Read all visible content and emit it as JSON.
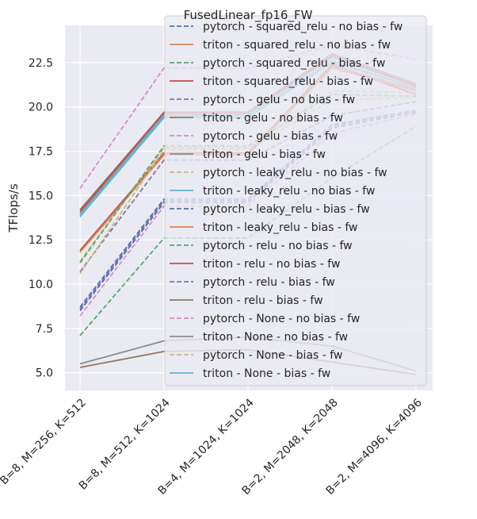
{
  "chart_data": {
    "type": "line",
    "title": "FusedLinear_fp16_FW",
    "xlabel": "",
    "ylabel": "TFlops/s",
    "categories": [
      "B=8, M=256, K=512",
      "B=8, M=512, K=1024",
      "B=4, M=1024, K=1024",
      "B=2, M=2048, K=2048",
      "B=2, M=4096, K=4096"
    ],
    "ylim": [
      4.0,
      24.6
    ],
    "yticks": [
      "5.0",
      "7.5",
      "10.0",
      "12.5",
      "15.0",
      "17.5",
      "20.0",
      "22.5"
    ],
    "grid": true,
    "legend_position": "top-right",
    "series": [
      {
        "name": "pytorch - squared_relu - no bias - fw",
        "color": "#4c72b0",
        "dash": true,
        "values": [
          8.7,
          14.8,
          14.8,
          19.0,
          19.8
        ]
      },
      {
        "name": "triton  - squared_relu - no bias - fw",
        "color": "#dd8452",
        "dash": false,
        "values": [
          11.8,
          17.3,
          17.3,
          22.3,
          21.0
        ]
      },
      {
        "name": "pytorch - squared_relu -  bias - fw",
        "color": "#55a868",
        "dash": true,
        "values": [
          7.1,
          12.6,
          12.6,
          16.0,
          18.9
        ]
      },
      {
        "name": "triton  - squared_relu -  bias - fw",
        "color": "#c44e52",
        "dash": false,
        "values": [
          11.9,
          17.4,
          17.4,
          22.4,
          20.7
        ]
      },
      {
        "name": "pytorch - gelu - no bias - fw",
        "color": "#8172b3",
        "dash": true,
        "values": [
          10.7,
          17.0,
          17.0,
          19.5,
          20.3
        ]
      },
      {
        "name": "triton  - gelu - no bias - fw",
        "color": "#937860",
        "dash": false,
        "values": [
          14.2,
          19.7,
          19.7,
          23.0,
          21.3
        ]
      },
      {
        "name": "pytorch - gelu -  bias - fw",
        "color": "#da8bc3",
        "dash": true,
        "values": [
          8.2,
          14.4,
          14.4,
          18.5,
          19.6
        ]
      },
      {
        "name": "triton  - gelu -  bias - fw",
        "color": "#8c8c8c",
        "dash": false,
        "values": [
          14.0,
          19.6,
          19.6,
          22.8,
          21.2
        ]
      },
      {
        "name": "pytorch - leaky_relu - no bias - fw",
        "color": "#ccb974",
        "dash": true,
        "values": [
          11.3,
          17.7,
          17.7,
          20.9,
          20.8
        ]
      },
      {
        "name": "triton  - leaky_relu - no bias - fw",
        "color": "#64b5cd",
        "dash": false,
        "values": [
          13.9,
          19.5,
          19.5,
          22.6,
          21.1
        ]
      },
      {
        "name": "pytorch - leaky_relu -  bias - fw",
        "color": "#4c72b0",
        "dash": true,
        "values": [
          8.5,
          14.6,
          14.6,
          18.8,
          19.7
        ]
      },
      {
        "name": "triton  - leaky_relu -  bias - fw",
        "color": "#dd8452",
        "dash": false,
        "values": [
          11.8,
          17.3,
          17.3,
          22.2,
          20.9
        ]
      },
      {
        "name": "pytorch - relu - no bias - fw",
        "color": "#55a868",
        "dash": true,
        "values": [
          11.2,
          17.8,
          17.8,
          20.7,
          20.6
        ]
      },
      {
        "name": "triton  - relu - no bias - fw",
        "color": "#c44e52",
        "dash": false,
        "values": [
          14.1,
          19.7,
          19.7,
          22.9,
          21.2
        ]
      },
      {
        "name": "pytorch - relu -  bias - fw",
        "color": "#8172b3",
        "dash": true,
        "values": [
          8.6,
          14.7,
          14.7,
          18.9,
          19.8
        ]
      },
      {
        "name": "triton  - relu -  bias - fw",
        "color": "#937860",
        "dash": false,
        "values": [
          5.3,
          6.2,
          6.3,
          5.6,
          4.9
        ]
      },
      {
        "name": "pytorch - None - no bias - fw",
        "color": "#da8bc3",
        "dash": true,
        "values": [
          15.4,
          22.2,
          22.2,
          23.5,
          22.7
        ]
      },
      {
        "name": "triton  - None - no bias - fw",
        "color": "#8c8c8c",
        "dash": false,
        "values": [
          5.5,
          6.8,
          7.0,
          6.5,
          5.1
        ]
      },
      {
        "name": "pytorch - None -  bias - fw",
        "color": "#ccb974",
        "dash": true,
        "values": [
          10.6,
          17.6,
          17.6,
          20.4,
          20.5
        ]
      },
      {
        "name": "triton  - None -  bias - fw",
        "color": "#64b5cd",
        "dash": false,
        "values": [
          13.8,
          19.4,
          19.4,
          22.5,
          21.1
        ]
      }
    ]
  }
}
